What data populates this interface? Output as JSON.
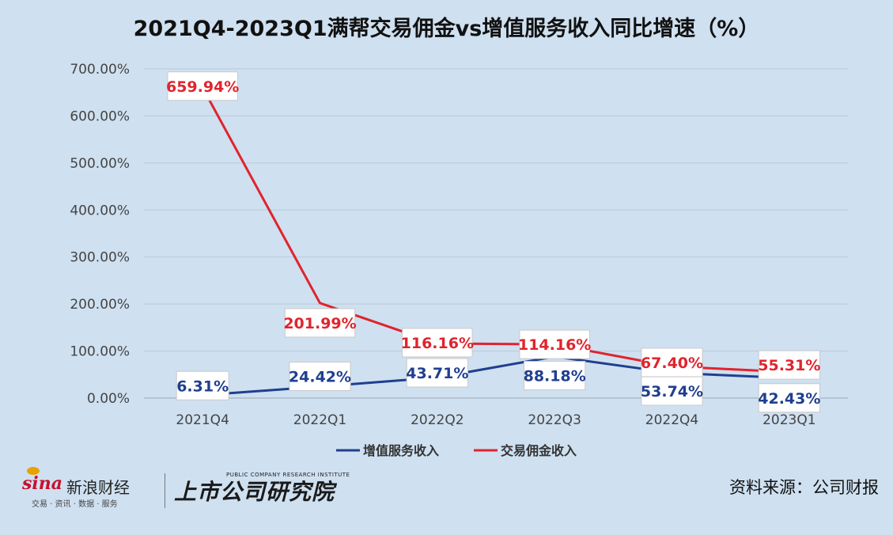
{
  "title": "2021Q4-2023Q1满帮交易佣金vs增值服务收入同比增速（%）",
  "chart_data": {
    "type": "line",
    "title": "2021Q4-2023Q1满帮交易佣金vs增值服务收入同比增速（%）",
    "categories": [
      "2021Q4",
      "2022Q1",
      "2022Q2",
      "2022Q3",
      "2022Q4",
      "2023Q1"
    ],
    "y_ticks": [
      "0.00%",
      "100.00%",
      "200.00%",
      "300.00%",
      "400.00%",
      "500.00%",
      "600.00%",
      "700.00%"
    ],
    "ylim": [
      0,
      700
    ],
    "grid": true,
    "legend_position": "bottom",
    "series": [
      {
        "name": "增值服务收入",
        "color": "#1f3f8f",
        "values": [
          6.31,
          24.42,
          43.71,
          88.18,
          53.74,
          42.43
        ],
        "labels": [
          "6.31%",
          "24.42%",
          "43.71%",
          "88.18%",
          "53.74%",
          "42.43%"
        ]
      },
      {
        "name": "交易佣金收入",
        "color": "#e0242d",
        "values": [
          659.94,
          201.99,
          116.16,
          114.16,
          67.4,
          55.31
        ],
        "labels": [
          "659.94%",
          "201.99%",
          "116.16%",
          "114.16%",
          "67.40%",
          "55.31%"
        ]
      }
    ]
  },
  "footer": {
    "sina_logo": "sina",
    "sina_name": "新浪财经",
    "sina_sub": "交易 · 资讯 · 数据 · 服务",
    "research_name": "上市公司研究院",
    "research_en": "PUBLIC COMPANY RESEARCH INSTITUTE",
    "source": "资料来源：公司财报"
  }
}
